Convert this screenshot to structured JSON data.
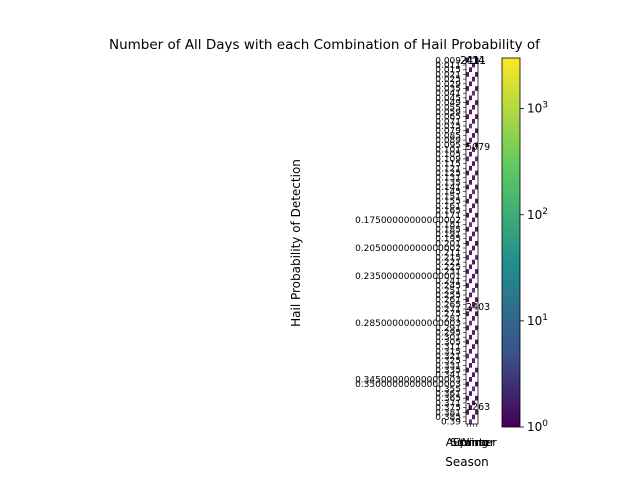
{
  "chart_data": {
    "type": "heatmap",
    "title": "Number of All Days with each Combination of Hail Probability of",
    "xlabel": "Season",
    "ylabel": "Hail Probability of Detection",
    "categories": [
      "Autumn",
      "Spring",
      "Summer",
      "Winter"
    ],
    "y_ticks": [
      "0.009",
      "0.011",
      "0.015",
      "0.021",
      "0.025",
      "0.029",
      "0.035",
      "0.041",
      "0.045",
      "0.049",
      "0.055",
      "0.059",
      "0.065",
      "0.071",
      "0.075",
      "0.079",
      "0.085",
      "0.089",
      "0.095",
      "0.101",
      "0.105",
      "0.109",
      "0.115",
      "0.121",
      "0.125",
      "0.131",
      "0.135",
      "0.141",
      "0.145",
      "0.151",
      "0.155",
      "0.161",
      "0.165",
      "0.171",
      "0.17500000000000002",
      "0.181",
      "0.185",
      "0.191",
      "0.195",
      "0.201",
      "0.20500000000000002",
      "0.211",
      "0.215",
      "0.221",
      "0.225",
      "0.231",
      "0.23500000000000001",
      "0.241",
      "0.245",
      "0.251",
      "0.255",
      "0.261",
      "0.265",
      "0.271",
      "0.275",
      "0.281",
      "0.28500000000000003",
      "0.291",
      "0.295",
      "0.301",
      "0.305",
      "0.311",
      "0.315",
      "0.321",
      "0.325",
      "0.331",
      "0.335",
      "0.341",
      "0.34500000000000003",
      "0.35000000000000003",
      "0.355",
      "0.361",
      "0.365",
      "0.371",
      "0.375",
      "0.381",
      "0.385",
      "0.39"
    ],
    "top_labels": [
      "21",
      "41",
      "11",
      "4"
    ],
    "legend": "colorbar right",
    "colorbar": {
      "scale": "log",
      "colormap": "viridis",
      "range": [
        1,
        3000
      ],
      "tick_labels": [
        "10^0",
        "10^1",
        "10^2",
        "10^3"
      ]
    },
    "annotation_examples": [
      "5079",
      "2403",
      "1263"
    ]
  }
}
